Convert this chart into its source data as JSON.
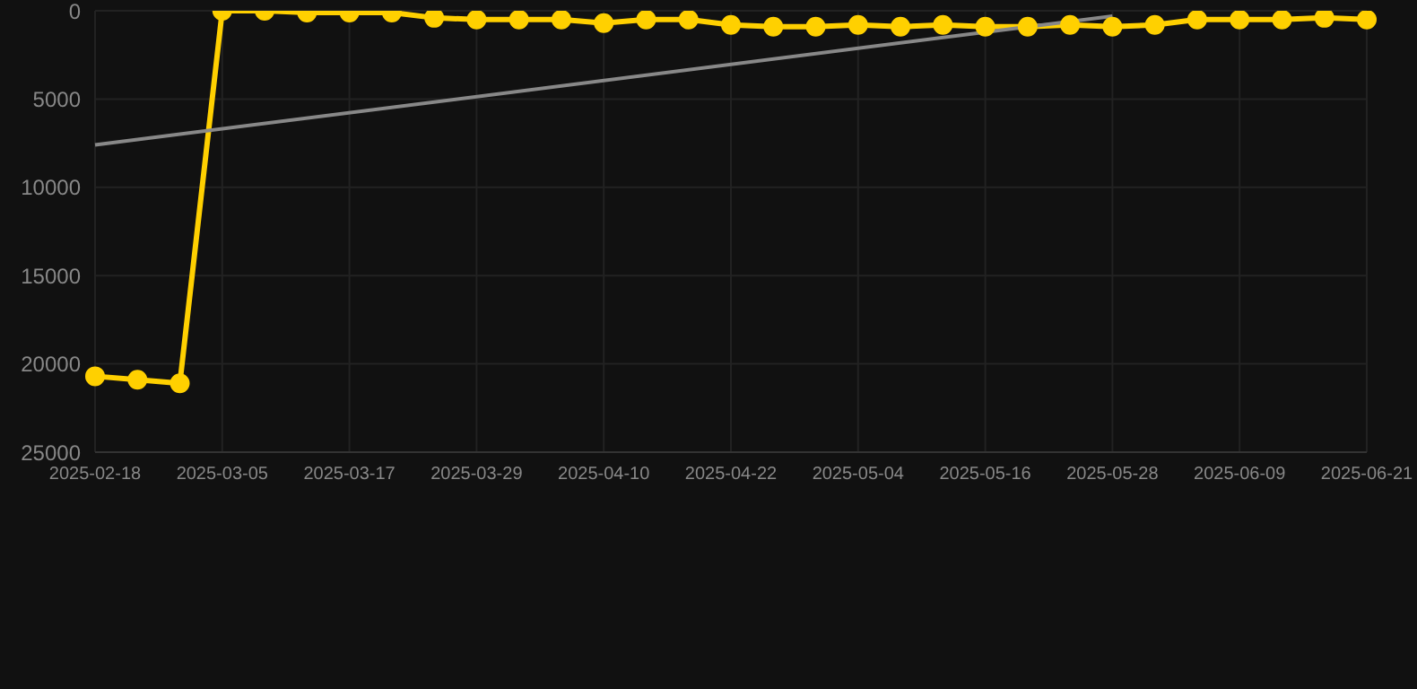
{
  "chart_data": {
    "type": "line",
    "categories": [
      "2025-02-18",
      null,
      null,
      "2025-03-05",
      null,
      null,
      "2025-03-17",
      null,
      null,
      "2025-03-29",
      null,
      null,
      "2025-04-10",
      null,
      null,
      "2025-04-22",
      null,
      null,
      "2025-05-04",
      null,
      null,
      "2025-05-16",
      null,
      null,
      "2025-05-28",
      null,
      null,
      "2025-06-09",
      null,
      null,
      "2025-06-21"
    ],
    "series": [
      {
        "color": "#ffd000",
        "marker": "circle",
        "values": [
          20700,
          20900,
          21100,
          0,
          0,
          100,
          100,
          100,
          400,
          500,
          500,
          500,
          700,
          500,
          500,
          800,
          900,
          900,
          800,
          900,
          800,
          900,
          900,
          800,
          900,
          800,
          500,
          500,
          500,
          400,
          500
        ]
      },
      {
        "type": "line",
        "color": "#888888",
        "marker": "none",
        "values": [
          7600,
          null,
          null,
          null,
          null,
          null,
          null,
          null,
          null,
          null,
          null,
          null,
          null,
          null,
          null,
          null,
          null,
          null,
          null,
          null,
          null,
          null,
          null,
          null,
          300,
          null,
          null,
          null,
          null,
          null,
          null
        ]
      }
    ],
    "ylim": [
      25000,
      0
    ],
    "yticks": [
      0,
      5000,
      10000,
      15000,
      20000,
      25000
    ],
    "grid": true
  }
}
